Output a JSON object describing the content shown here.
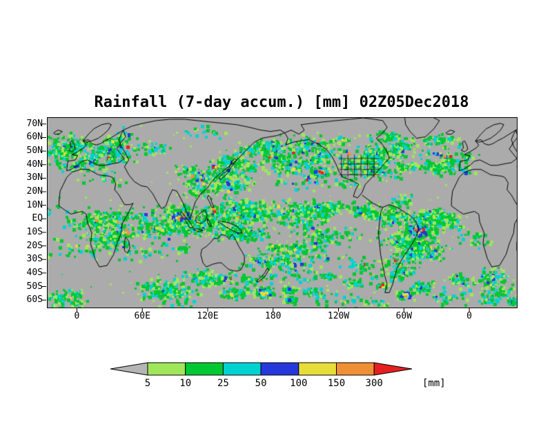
{
  "title": "Rainfall (7-day accum.) [mm] 02Z05Dec2018",
  "axes": {
    "lat_labels": [
      "70N",
      "60N",
      "50N",
      "40N",
      "30N",
      "20N",
      "10N",
      "EQ",
      "10S",
      "20S",
      "30S",
      "40S",
      "50S",
      "60S"
    ],
    "lon_labels": [
      "0",
      "60E",
      "120E",
      "180",
      "120W",
      "60W",
      "0"
    ]
  },
  "map": {
    "background_color": "#ababab",
    "coastline_color": "#000000",
    "rain_palette": {
      "pale": "#a0e65a",
      "green": "#00c832",
      "cyan": "#00d2d2",
      "blue": "#2638dc",
      "yellow": "#e6dd3a",
      "orange": "#ef9036",
      "red": "#e62020"
    }
  },
  "colorbar": {
    "tick_labels": [
      "5",
      "10",
      "25",
      "50",
      "100",
      "150",
      "300"
    ],
    "unit_label": "[mm]",
    "below_min_color": "#b5b5b5",
    "segment_colors": [
      "#a0e65a",
      "#00c832",
      "#00d2d2",
      "#2638dc",
      "#e6dd3a",
      "#ef9036"
    ],
    "above_max_color": "#e62020"
  },
  "chart_data": {
    "type": "heatmap",
    "title": "Rainfall (7-day accum.) [mm] 02Z05Dec2018",
    "variable": "Rainfall (7-day accum.)",
    "unit": "mm",
    "valid_time": "02Z05Dec2018",
    "levels_mm": [
      5,
      10,
      25,
      50,
      100,
      150,
      300
    ],
    "level_colors": [
      "#b5b5b5",
      "#a0e65a",
      "#00c832",
      "#00d2d2",
      "#2638dc",
      "#e6dd3a",
      "#ef9036",
      "#e62020"
    ],
    "x_axis": {
      "label": "",
      "ticks": [
        "0",
        "60E",
        "120E",
        "180",
        "120W",
        "60W",
        "0"
      ]
    },
    "y_axis": {
      "label": "",
      "ticks": [
        "70N",
        "60N",
        "50N",
        "40N",
        "30N",
        "20N",
        "10N",
        "EQ",
        "10S",
        "20S",
        "30S",
        "40S",
        "50S",
        "60S"
      ]
    },
    "legend_position": "bottom",
    "grid": false
  }
}
